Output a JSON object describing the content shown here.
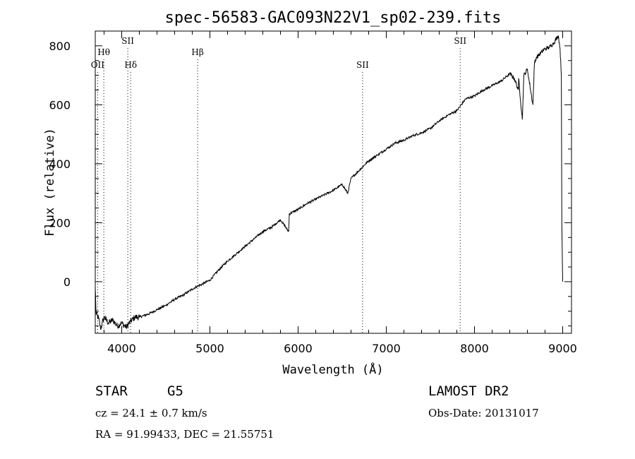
{
  "chart_data": {
    "type": "line",
    "title": "spec-56583-GAC093N22V1_sp02-239.fits",
    "xlabel": "Wavelength (Å)",
    "ylabel": "Flux (relative)",
    "xlim": [
      3700,
      9100
    ],
    "ylim": [
      -175,
      850
    ],
    "x_ticks": [
      4000,
      5000,
      6000,
      7000,
      8000,
      9000
    ],
    "y_ticks": [
      0,
      200,
      400,
      600,
      800
    ],
    "grid": false,
    "series": [
      {
        "x": [
          3700,
          3710,
          3740,
          3760,
          3800,
          3850,
          3900,
          3950,
          4000,
          4050,
          4100,
          4150,
          4200,
          4300,
          4400,
          4500,
          4600,
          4700,
          4800,
          4861,
          4900,
          5000,
          5100,
          5200,
          5300,
          5400,
          5500,
          5600,
          5700,
          5800,
          5893,
          5900,
          6000,
          6100,
          6200,
          6300,
          6400,
          6500,
          6563,
          6600,
          6700,
          6800,
          6900,
          7000,
          7100,
          7200,
          7300,
          7400,
          7500,
          7600,
          7700,
          7800,
          7900,
          8000,
          8100,
          8200,
          8300,
          8400,
          8450,
          8498,
          8500,
          8542,
          8560,
          8600,
          8662,
          8680,
          8700,
          8800,
          8850,
          8900,
          8950,
          8970,
          8985,
          8990,
          9000
        ],
        "y": [
          -20,
          -110,
          -125,
          -160,
          -120,
          -140,
          -130,
          -150,
          -140,
          -155,
          -135,
          -120,
          -120,
          -110,
          -95,
          -80,
          -60,
          -45,
          -25,
          -15,
          -10,
          5,
          40,
          70,
          95,
          120,
          145,
          170,
          185,
          210,
          170,
          230,
          245,
          265,
          280,
          295,
          310,
          330,
          300,
          350,
          380,
          410,
          430,
          450,
          470,
          480,
          495,
          505,
          520,
          545,
          565,
          580,
          620,
          630,
          650,
          665,
          680,
          705,
          690,
          650,
          690,
          550,
          700,
          720,
          600,
          740,
          760,
          790,
          795,
          810,
          835,
          790,
          700,
          200,
          0
        ]
      }
    ],
    "line_markers": [
      {
        "label": "OII",
        "x": 3727,
        "row": "low"
      },
      {
        "label": "Hθ",
        "x": 3797,
        "row": "mid"
      },
      {
        "label": "SII",
        "x": 4069,
        "row": "high"
      },
      {
        "label": "Hδ",
        "x": 4102,
        "row": "low"
      },
      {
        "label": "Hβ",
        "x": 4861,
        "row": "mid"
      },
      {
        "label": "SII",
        "x": 6731,
        "row": "low"
      },
      {
        "label": "SII",
        "x": 7838,
        "row": "high"
      }
    ],
    "annotations": {
      "object_class": "STAR",
      "subclass": "G5",
      "survey": "LAMOST DR2",
      "redshift_text": "cz = 24.1 ± 0.7 km/s",
      "obs_date_text": "Obs-Date: 20131017",
      "coords_text": "RA =  91.99433, DEC =  21.55751"
    }
  }
}
